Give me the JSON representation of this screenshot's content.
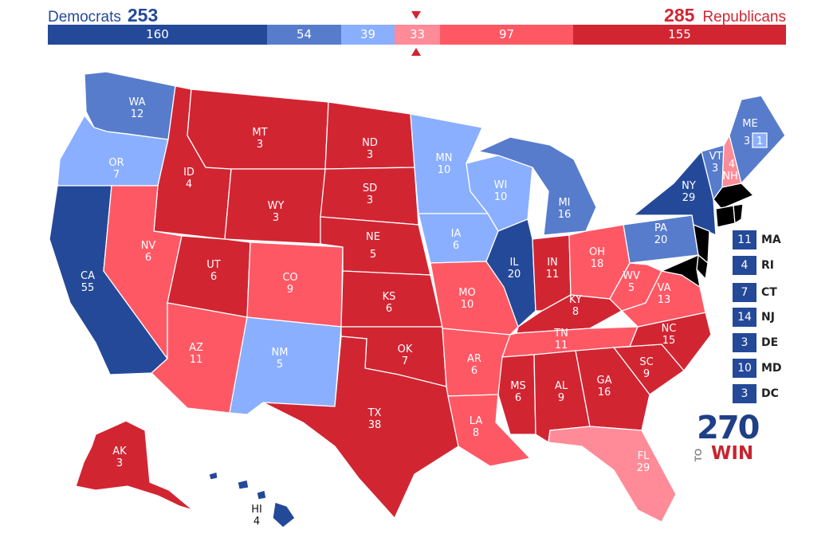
{
  "header": {
    "dem_name": "Democrats",
    "dem_total": "253",
    "rep_total": "285",
    "rep_name": "Republicans"
  },
  "colors": {
    "solid_d": "#244999",
    "likely_d": "#577ccc",
    "lean_d": "#8aafff",
    "tilt_r": "#ff8b98",
    "lean_r": "#ff5865",
    "likely_r": "#d22532"
  },
  "bar_segments": [
    {
      "value": "160",
      "category": "solid-d"
    },
    {
      "value": "54",
      "category": "likely-d"
    },
    {
      "value": "39",
      "category": "lean-d"
    },
    {
      "value": "33",
      "category": "tilt-r"
    },
    {
      "value": "97",
      "category": "lean-r"
    },
    {
      "value": "155",
      "category": "likely-r"
    }
  ],
  "states": {
    "WA": {
      "abbr": "WA",
      "ev": "12",
      "cat": "likely_d"
    },
    "OR": {
      "abbr": "OR",
      "ev": "7",
      "cat": "lean_d"
    },
    "CA": {
      "abbr": "CA",
      "ev": "55",
      "cat": "solid_d"
    },
    "ID": {
      "abbr": "ID",
      "ev": "4",
      "cat": "likely_r"
    },
    "NV": {
      "abbr": "NV",
      "ev": "6",
      "cat": "lean_r"
    },
    "MT": {
      "abbr": "MT",
      "ev": "3",
      "cat": "likely_r"
    },
    "WY": {
      "abbr": "WY",
      "ev": "3",
      "cat": "likely_r"
    },
    "UT": {
      "abbr": "UT",
      "ev": "6",
      "cat": "likely_r"
    },
    "AZ": {
      "abbr": "AZ",
      "ev": "11",
      "cat": "lean_r"
    },
    "CO": {
      "abbr": "CO",
      "ev": "9",
      "cat": "lean_r"
    },
    "NM": {
      "abbr": "NM",
      "ev": "5",
      "cat": "lean_d"
    },
    "ND": {
      "abbr": "ND",
      "ev": "3",
      "cat": "likely_r"
    },
    "SD": {
      "abbr": "SD",
      "ev": "3",
      "cat": "likely_r"
    },
    "NE": {
      "abbr": "NE",
      "ev": "5",
      "cat": "likely_r"
    },
    "KS": {
      "abbr": "KS",
      "ev": "6",
      "cat": "likely_r"
    },
    "OK": {
      "abbr": "OK",
      "ev": "7",
      "cat": "likely_r"
    },
    "TX": {
      "abbr": "TX",
      "ev": "38",
      "cat": "likely_r"
    },
    "MN": {
      "abbr": "MN",
      "ev": "10",
      "cat": "lean_d"
    },
    "IA": {
      "abbr": "IA",
      "ev": "6",
      "cat": "lean_d"
    },
    "MO": {
      "abbr": "MO",
      "ev": "10",
      "cat": "lean_r"
    },
    "AR": {
      "abbr": "AR",
      "ev": "6",
      "cat": "lean_r"
    },
    "LA": {
      "abbr": "LA",
      "ev": "8",
      "cat": "lean_r"
    },
    "WI": {
      "abbr": "WI",
      "ev": "10",
      "cat": "lean_d"
    },
    "IL": {
      "abbr": "IL",
      "ev": "20",
      "cat": "solid_d"
    },
    "MI": {
      "abbr": "MI",
      "ev": "16",
      "cat": "likely_d"
    },
    "IN": {
      "abbr": "IN",
      "ev": "11",
      "cat": "likely_r"
    },
    "OH": {
      "abbr": "OH",
      "ev": "18",
      "cat": "lean_r"
    },
    "KY": {
      "abbr": "KY",
      "ev": "8",
      "cat": "likely_r"
    },
    "TN": {
      "abbr": "TN",
      "ev": "11",
      "cat": "lean_r"
    },
    "MS": {
      "abbr": "MS",
      "ev": "6",
      "cat": "likely_r"
    },
    "AL": {
      "abbr": "AL",
      "ev": "9",
      "cat": "likely_r"
    },
    "GA": {
      "abbr": "GA",
      "ev": "16",
      "cat": "likely_r"
    },
    "FL": {
      "abbr": "FL",
      "ev": "29",
      "cat": "tilt_r"
    },
    "SC": {
      "abbr": "SC",
      "ev": "9",
      "cat": "likely_r"
    },
    "NC": {
      "abbr": "NC",
      "ev": "15",
      "cat": "likely_r"
    },
    "VA": {
      "abbr": "VA",
      "ev": "13",
      "cat": "lean_r"
    },
    "WV": {
      "abbr": "WV",
      "ev": "5",
      "cat": "lean_r"
    },
    "PA": {
      "abbr": "PA",
      "ev": "20",
      "cat": "likely_d"
    },
    "NY": {
      "abbr": "NY",
      "ev": "29",
      "cat": "solid_d"
    },
    "VT": {
      "abbr": "VT",
      "ev": "3",
      "cat": "likely_d"
    },
    "NH": {
      "abbr": "NH",
      "ev": "4",
      "cat": "tilt_r"
    },
    "ME": {
      "abbr": "ME",
      "ev": "3",
      "cat": "likely_d"
    },
    "ME_CD": {
      "abbr": "",
      "ev": "1",
      "cat": "lean_d"
    },
    "AK": {
      "abbr": "AK",
      "ev": "3",
      "cat": "likely_r"
    },
    "HI": {
      "abbr": "HI",
      "ev": "4",
      "cat": "solid_d"
    }
  },
  "small_states": [
    {
      "ev": "11",
      "abbr": "MA"
    },
    {
      "ev": "4",
      "abbr": "RI"
    },
    {
      "ev": "7",
      "abbr": "CT"
    },
    {
      "ev": "14",
      "abbr": "NJ"
    },
    {
      "ev": "3",
      "abbr": "DE"
    },
    {
      "ev": "10",
      "abbr": "MD"
    },
    {
      "ev": "3",
      "abbr": "DC"
    }
  ],
  "logo": {
    "number": "270",
    "to": "TO",
    "win": "WIN"
  }
}
